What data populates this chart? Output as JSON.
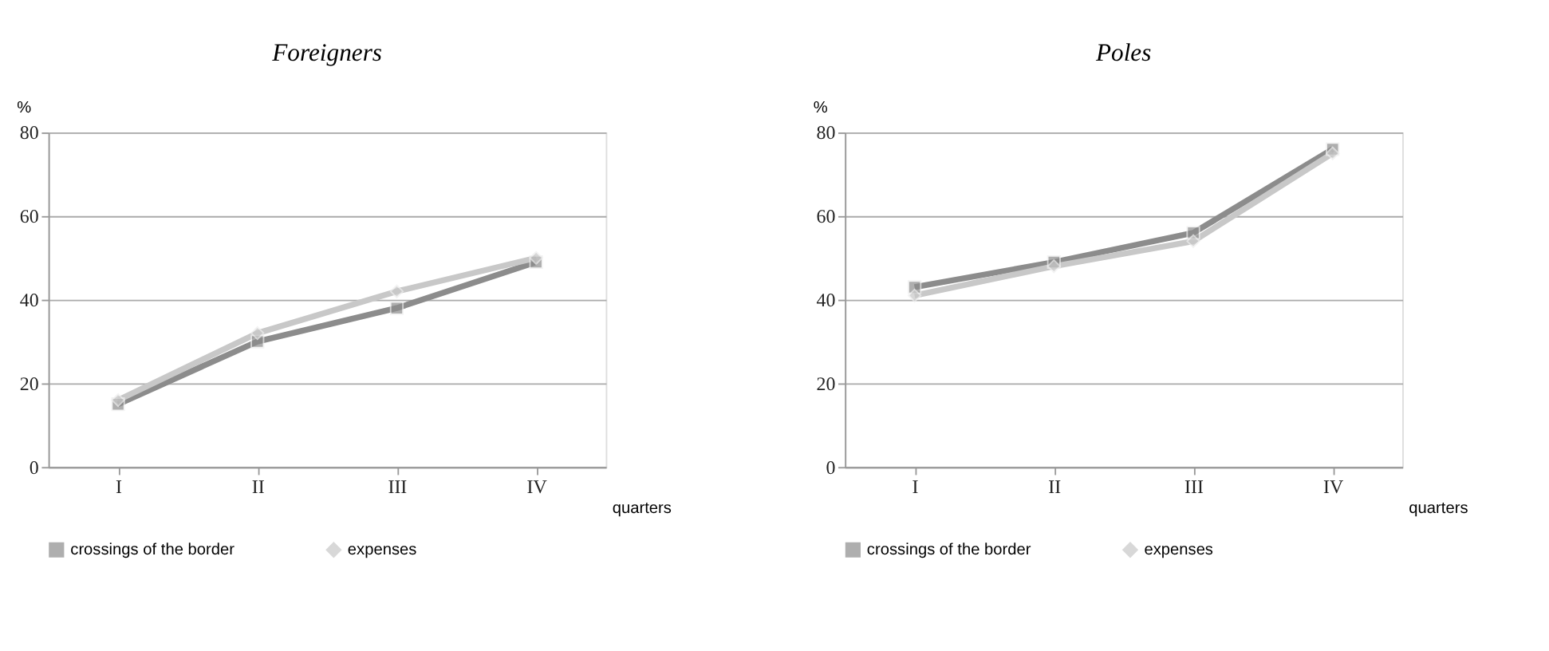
{
  "chart_data": [
    {
      "type": "line",
      "title": "Foreigners",
      "ylabel": "%",
      "xlabel": "quarters",
      "categories": [
        "I",
        "II",
        "III",
        "IV"
      ],
      "ylim": [
        0,
        80
      ],
      "yticks": [
        0,
        20,
        40,
        60,
        80
      ],
      "grid": "y",
      "legend": "bottom",
      "series": [
        {
          "name": "crossings of the border",
          "color": "#8c8c8c",
          "marker": "square",
          "values": [
            15,
            30,
            38,
            49
          ]
        },
        {
          "name": "expenses",
          "color": "#c8c8c8",
          "marker": "diamond",
          "values": [
            16,
            32,
            42,
            50
          ]
        }
      ]
    },
    {
      "type": "line",
      "title": "Poles",
      "ylabel": "%",
      "xlabel": "quarters",
      "categories": [
        "I",
        "II",
        "III",
        "IV"
      ],
      "ylim": [
        0,
        80
      ],
      "yticks": [
        0,
        20,
        40,
        60,
        80
      ],
      "grid": "y",
      "legend": "bottom",
      "series": [
        {
          "name": "crossings of the border",
          "color": "#8c8c8c",
          "marker": "square",
          "values": [
            43,
            49,
            56,
            76
          ]
        },
        {
          "name": "expenses",
          "color": "#c8c8c8",
          "marker": "diamond",
          "values": [
            41,
            48,
            54,
            75
          ]
        }
      ]
    }
  ]
}
